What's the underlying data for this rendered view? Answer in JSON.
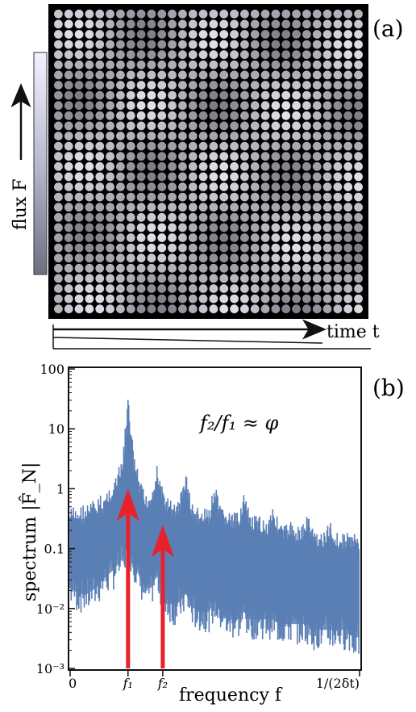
{
  "panel_a": {
    "label": "(a)",
    "y_label": "flux F",
    "x_label": "time t",
    "grid": {
      "rows": 30,
      "cols": 30
    }
  },
  "panel_b": {
    "label": "(b)",
    "annotation": "f₂/f₁ ≈ φ",
    "f1_label": "f₁",
    "f2_label": "f₂"
  },
  "chart_data": {
    "type": "line",
    "title": "",
    "xlabel": "frequency f",
    "ylabel": "spectrum |F̂_N|",
    "yscale": "log",
    "ylim": [
      0.001,
      100
    ],
    "x_tick_labels": [
      "0",
      "f₁",
      "f₂",
      "1/(2δt)"
    ],
    "y_tick_labels": [
      "100",
      "10",
      "1",
      "0.1",
      "10⁻²",
      "10⁻³"
    ],
    "y_ticks": [
      100,
      10,
      1,
      0.1,
      0.01,
      0.001
    ],
    "x_range": [
      0,
      1
    ],
    "series": [
      {
        "color": "#5b7fb5",
        "x": [
          0.0,
          0.03,
          0.06,
          0.09,
          0.12,
          0.15,
          0.18,
          0.2,
          0.22,
          0.24,
          0.26,
          0.28,
          0.3,
          0.32,
          0.34,
          0.36,
          0.38,
          0.4,
          0.42,
          0.44,
          0.46,
          0.48,
          0.5,
          0.52,
          0.54,
          0.56,
          0.58,
          0.6,
          0.62,
          0.64,
          0.66,
          0.68,
          0.7,
          0.72,
          0.74,
          0.76,
          0.78,
          0.8,
          0.82,
          0.84,
          0.86,
          0.88,
          0.9,
          0.92,
          0.94,
          0.96,
          0.98,
          1.0
        ],
        "upper": [
          0.5,
          0.55,
          0.6,
          0.7,
          0.9,
          1.5,
          3,
          35,
          4,
          1.5,
          0.8,
          1.0,
          2.5,
          1.0,
          0.7,
          0.6,
          0.8,
          2.0,
          0.6,
          0.5,
          0.45,
          0.5,
          1.2,
          0.5,
          0.45,
          0.4,
          0.4,
          0.9,
          0.4,
          0.35,
          0.35,
          0.3,
          0.6,
          0.3,
          0.25,
          0.3,
          0.25,
          0.25,
          0.4,
          0.22,
          0.2,
          0.2,
          0.3,
          0.2,
          0.18,
          0.2,
          0.18,
          0.18
        ],
        "lower": [
          0.01,
          0.008,
          0.008,
          0.01,
          0.015,
          0.02,
          0.03,
          0.05,
          0.03,
          0.015,
          0.01,
          0.01,
          0.02,
          0.008,
          0.006,
          0.005,
          0.006,
          0.008,
          0.005,
          0.004,
          0.004,
          0.004,
          0.006,
          0.004,
          0.003,
          0.003,
          0.003,
          0.004,
          0.003,
          0.003,
          0.003,
          0.003,
          0.003,
          0.0025,
          0.0025,
          0.0025,
          0.0025,
          0.0025,
          0.0025,
          0.002,
          0.002,
          0.002,
          0.002,
          0.002,
          0.002,
          0.002,
          0.0015,
          0.0015
        ]
      }
    ],
    "markers": [
      {
        "label": "f₁",
        "x": 0.2,
        "y_top": 1.0,
        "color": "#e8222b"
      },
      {
        "label": "f₂",
        "x": 0.32,
        "y_top": 0.25,
        "color": "#e8222b"
      }
    ]
  }
}
